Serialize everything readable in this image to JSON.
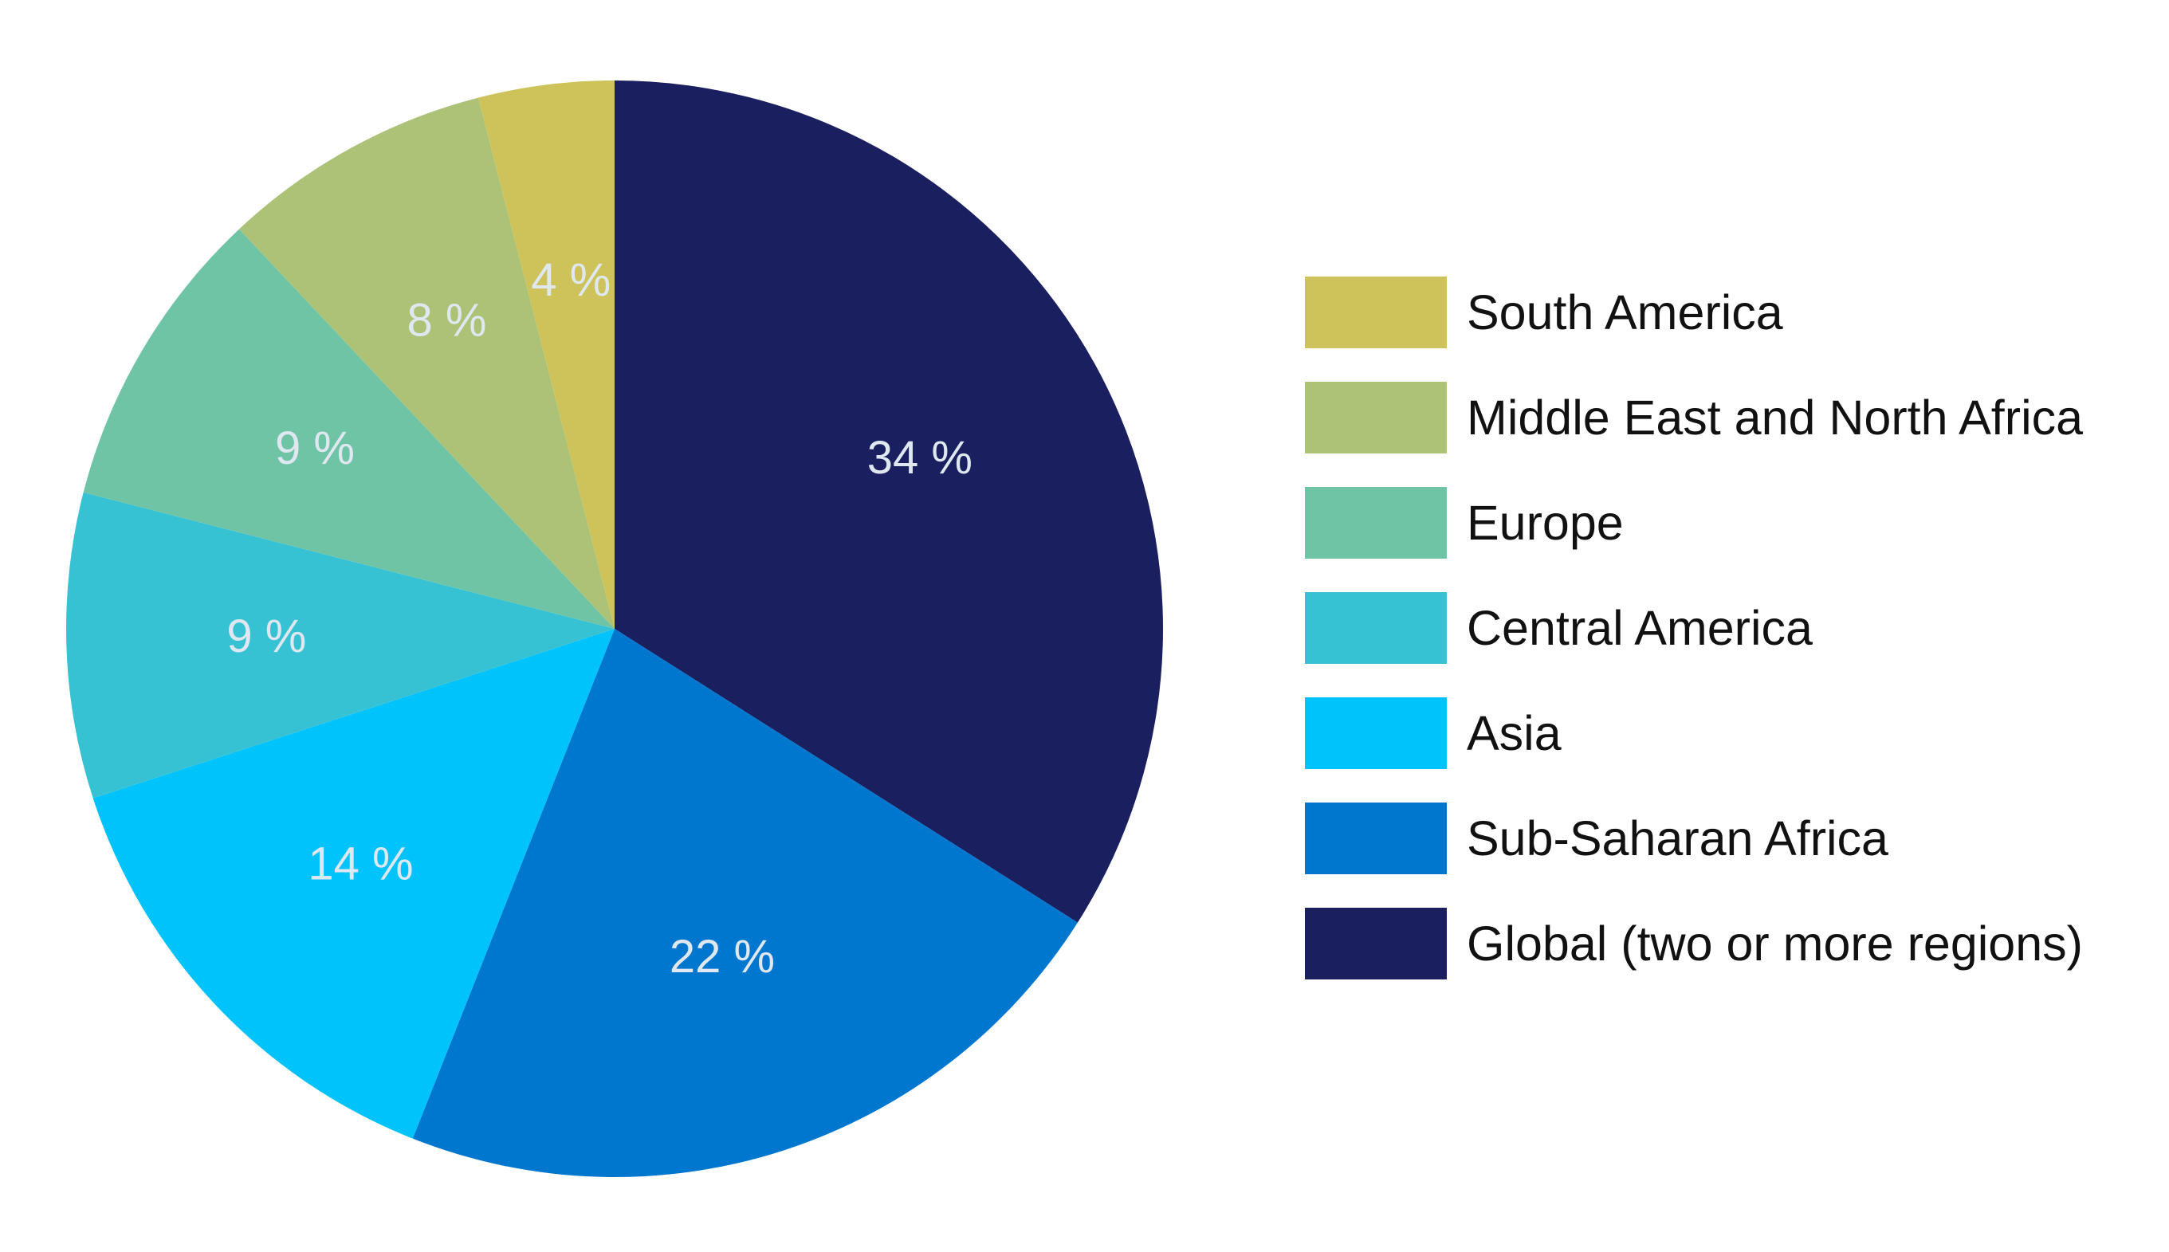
{
  "chart_data": {
    "type": "pie",
    "categories": [
      "Global (two or more regions)",
      "Sub-Saharan Africa",
      "Asia",
      "Central America",
      "Europe",
      "Middle East and North Africa",
      "South America"
    ],
    "values": [
      34,
      22,
      14,
      9,
      9,
      8,
      4
    ],
    "labels": [
      "34 %",
      "22 %",
      "14 %",
      "9 %",
      "9 %",
      "8 %",
      "4 %"
    ],
    "colors": [
      "#1a1f60",
      "#0077cf",
      "#00c3fc",
      "#37c2d3",
      "#70c4a6",
      "#abc277",
      "#cec25b"
    ],
    "start": "12 o'clock",
    "direction": "clockwise",
    "legend_position": "right",
    "legend_order": [
      6,
      5,
      4,
      3,
      2,
      1,
      0
    ]
  }
}
